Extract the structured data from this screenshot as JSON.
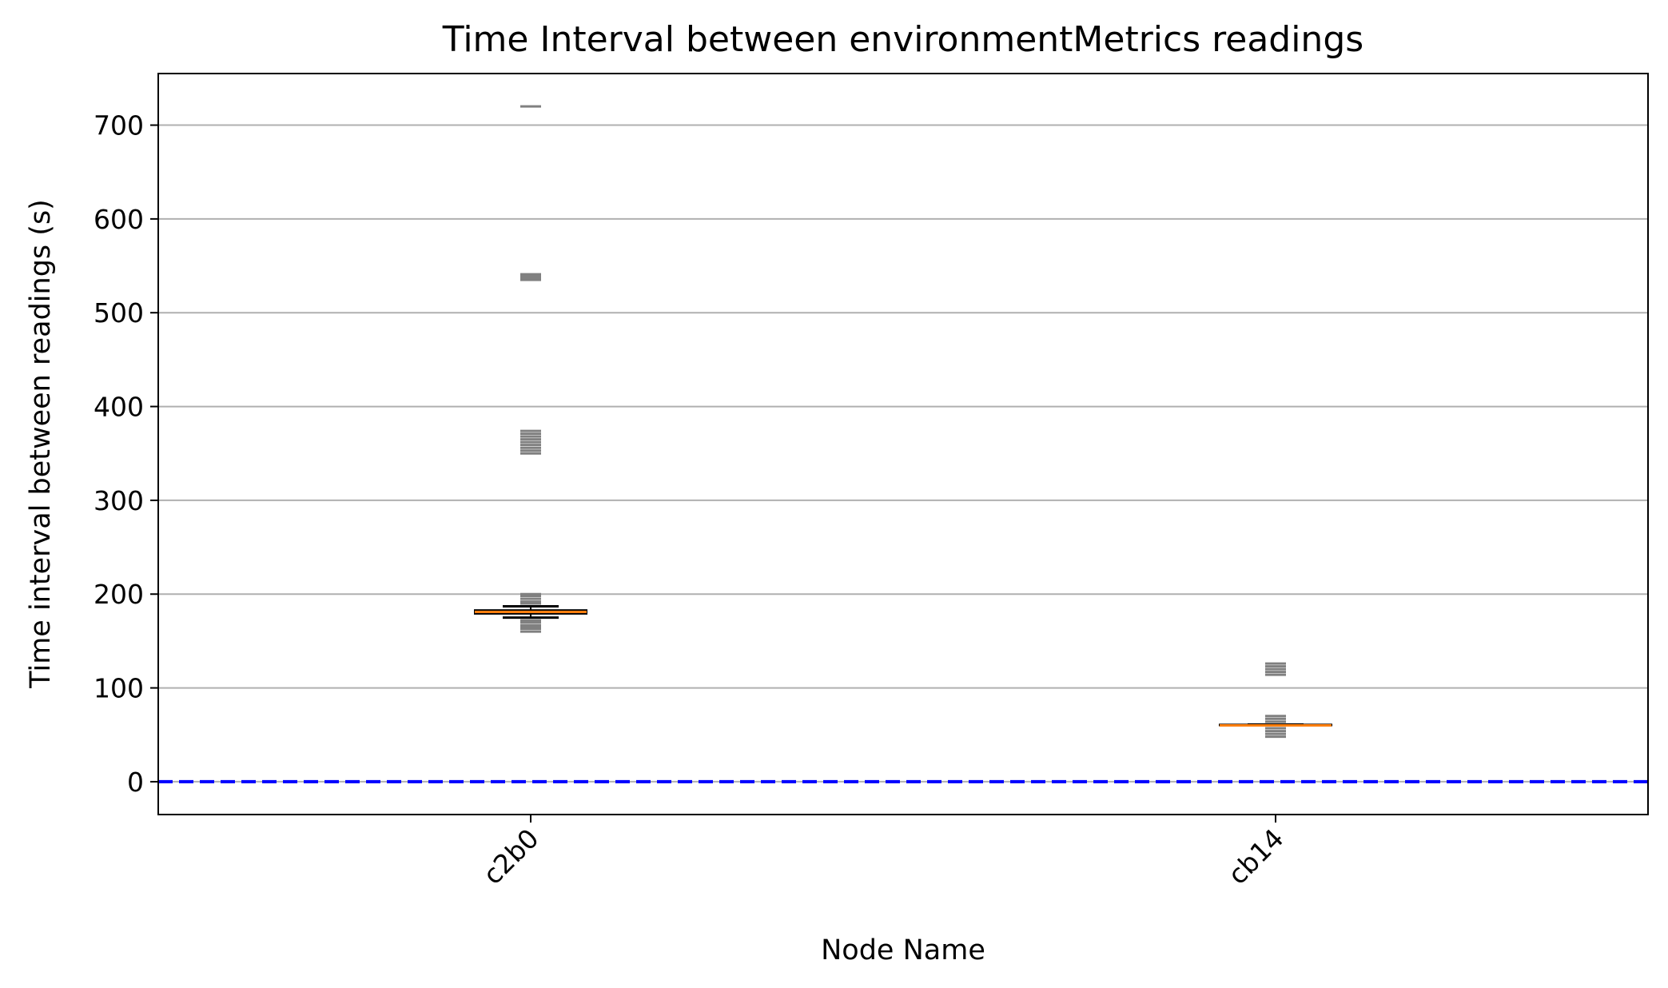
{
  "chart_data": {
    "type": "box",
    "title": "Time Interval between environmentMetrics readings",
    "xlabel": "Node Name",
    "ylabel": "Time interval between readings (s)",
    "categories": [
      "c2b0",
      "cb14"
    ],
    "ylim": [
      -35,
      755
    ],
    "yticks": [
      0,
      100,
      200,
      300,
      400,
      500,
      600,
      700
    ],
    "grid": "horizontal",
    "reference_line": {
      "y": 0,
      "style": "dashed",
      "color": "#0000ff"
    },
    "boxes": [
      {
        "name": "c2b0",
        "whisker_low": 175,
        "q1": 179,
        "median": 181,
        "q3": 183,
        "whisker_high": 187,
        "outliers": [
          160,
          163,
          165,
          167,
          170,
          172,
          190,
          192,
          195,
          198,
          200,
          350,
          353,
          356,
          359,
          362,
          365,
          368,
          371,
          374,
          535,
          537,
          539,
          541,
          720
        ]
      },
      {
        "name": "cb14",
        "whisker_low": 60,
        "q1": 60,
        "median": 60,
        "q3": 61,
        "whisker_high": 61,
        "outliers": [
          48,
          51,
          54,
          57,
          64,
          67,
          70,
          114,
          117,
          120,
          123,
          126
        ]
      }
    ],
    "colors": {
      "median": "#ff7f0e",
      "box": "#000000",
      "outlier": "#808080",
      "grid": "#b0b0b0",
      "reference": "#0000ff"
    }
  }
}
